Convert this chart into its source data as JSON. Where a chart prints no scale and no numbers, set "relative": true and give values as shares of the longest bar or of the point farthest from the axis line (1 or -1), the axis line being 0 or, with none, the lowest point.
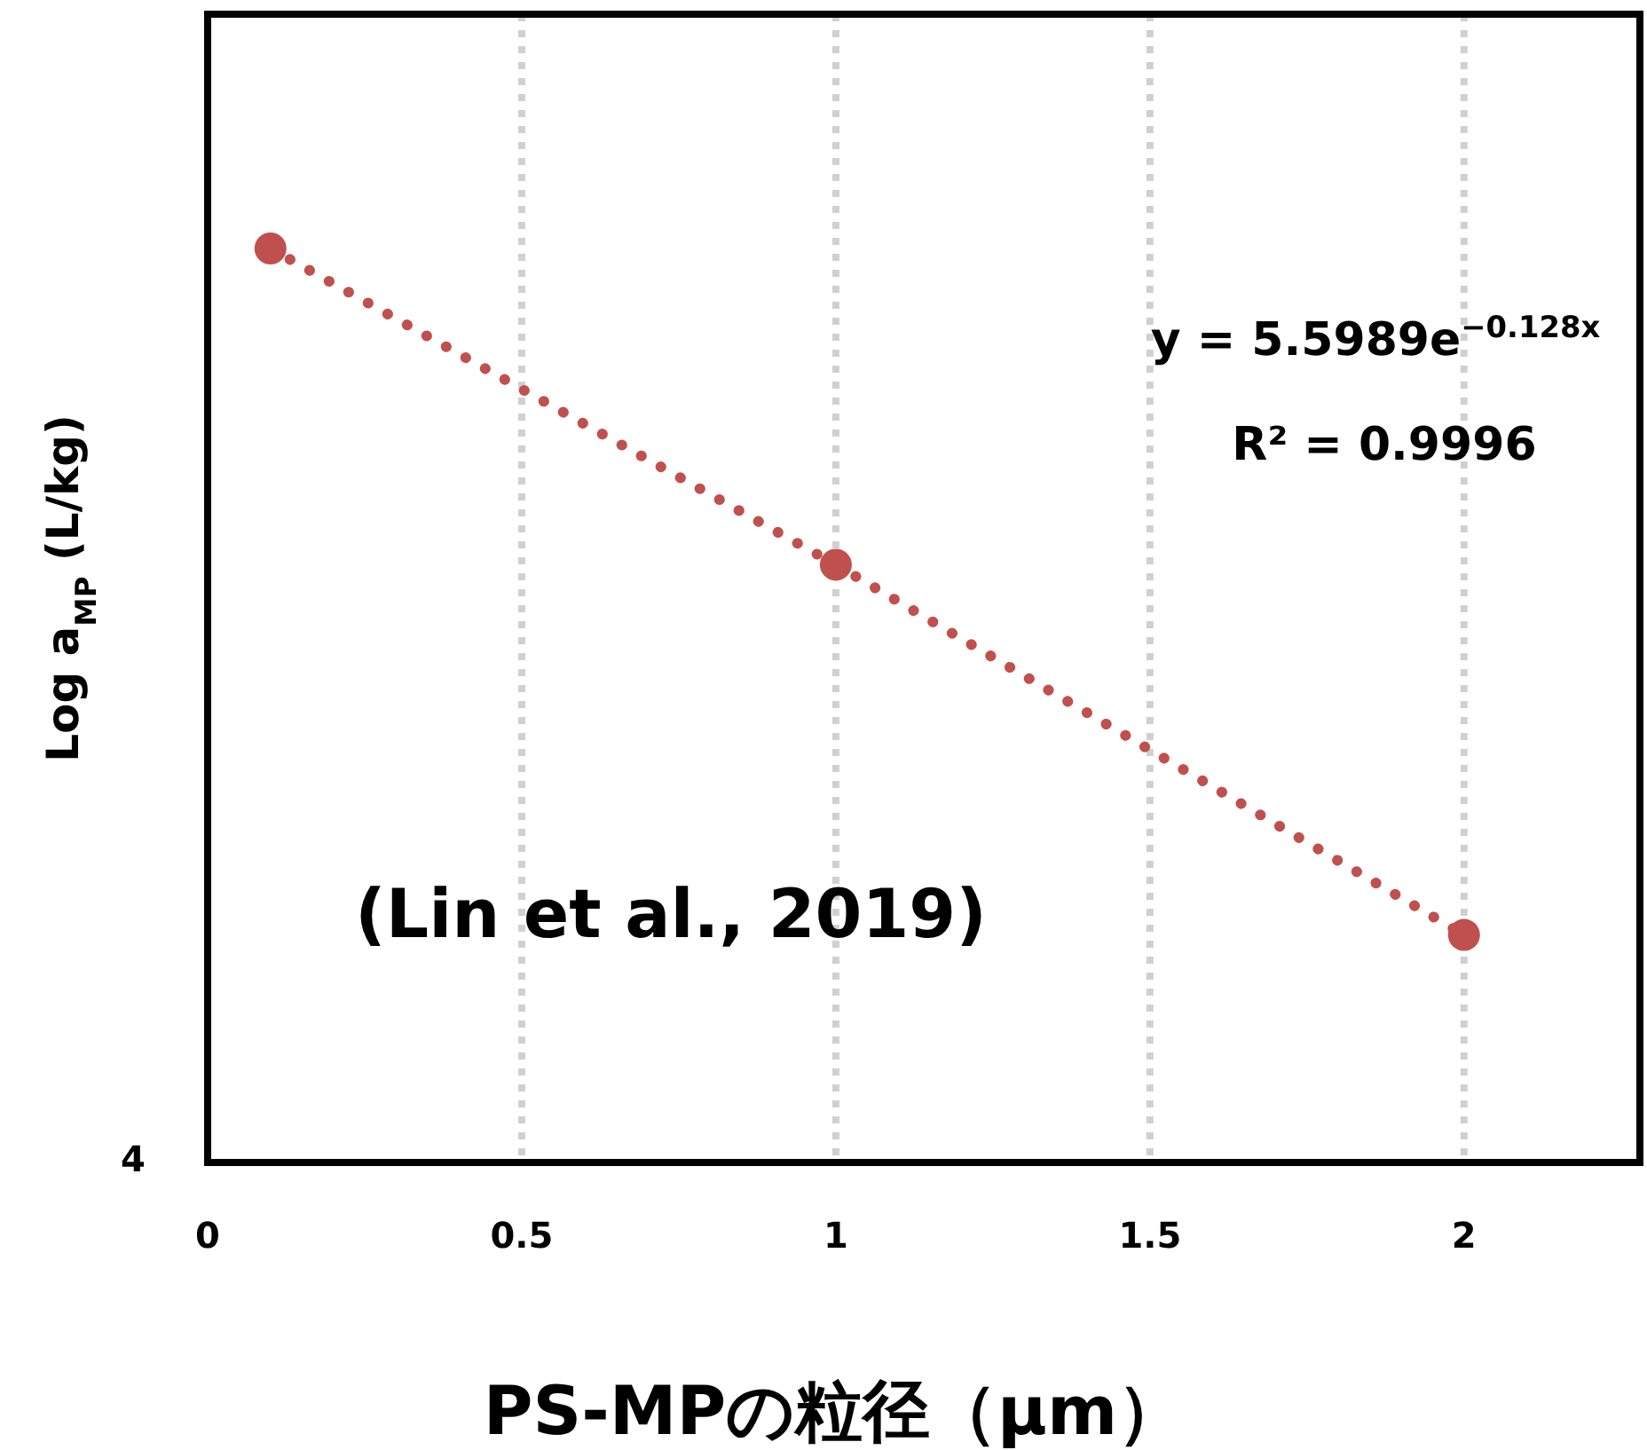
{
  "chart_data": {
    "type": "scatter",
    "relative": true,
    "xlabel": "PS-MPの粒径（μm）",
    "ylabel": "Log a$_{MP}$ (L/kg)",
    "xlim": [
      0,
      2.28
    ],
    "xticks": [
      0,
      0.5,
      1,
      1.5,
      2
    ],
    "grid": "x",
    "series": [
      {
        "type": "scatter",
        "color": "#c0504d",
        "marker": "circle",
        "x": [
          0.1,
          1,
          2
        ],
        "values": [
          1,
          0.654,
          0.249
        ]
      },
      {
        "type": "line",
        "color": "#c0504d",
        "line_style": "dotted",
        "marker": "none",
        "x": [
          0.1,
          1,
          2
        ],
        "values": [
          1,
          0.654,
          0.249
        ]
      }
    ],
    "annotations": [
      "y = 5.5989e$^{−0.128x}$",
      "R² = 0.9996",
      "(Lin et al., 2019)",
      "4"
    ]
  }
}
